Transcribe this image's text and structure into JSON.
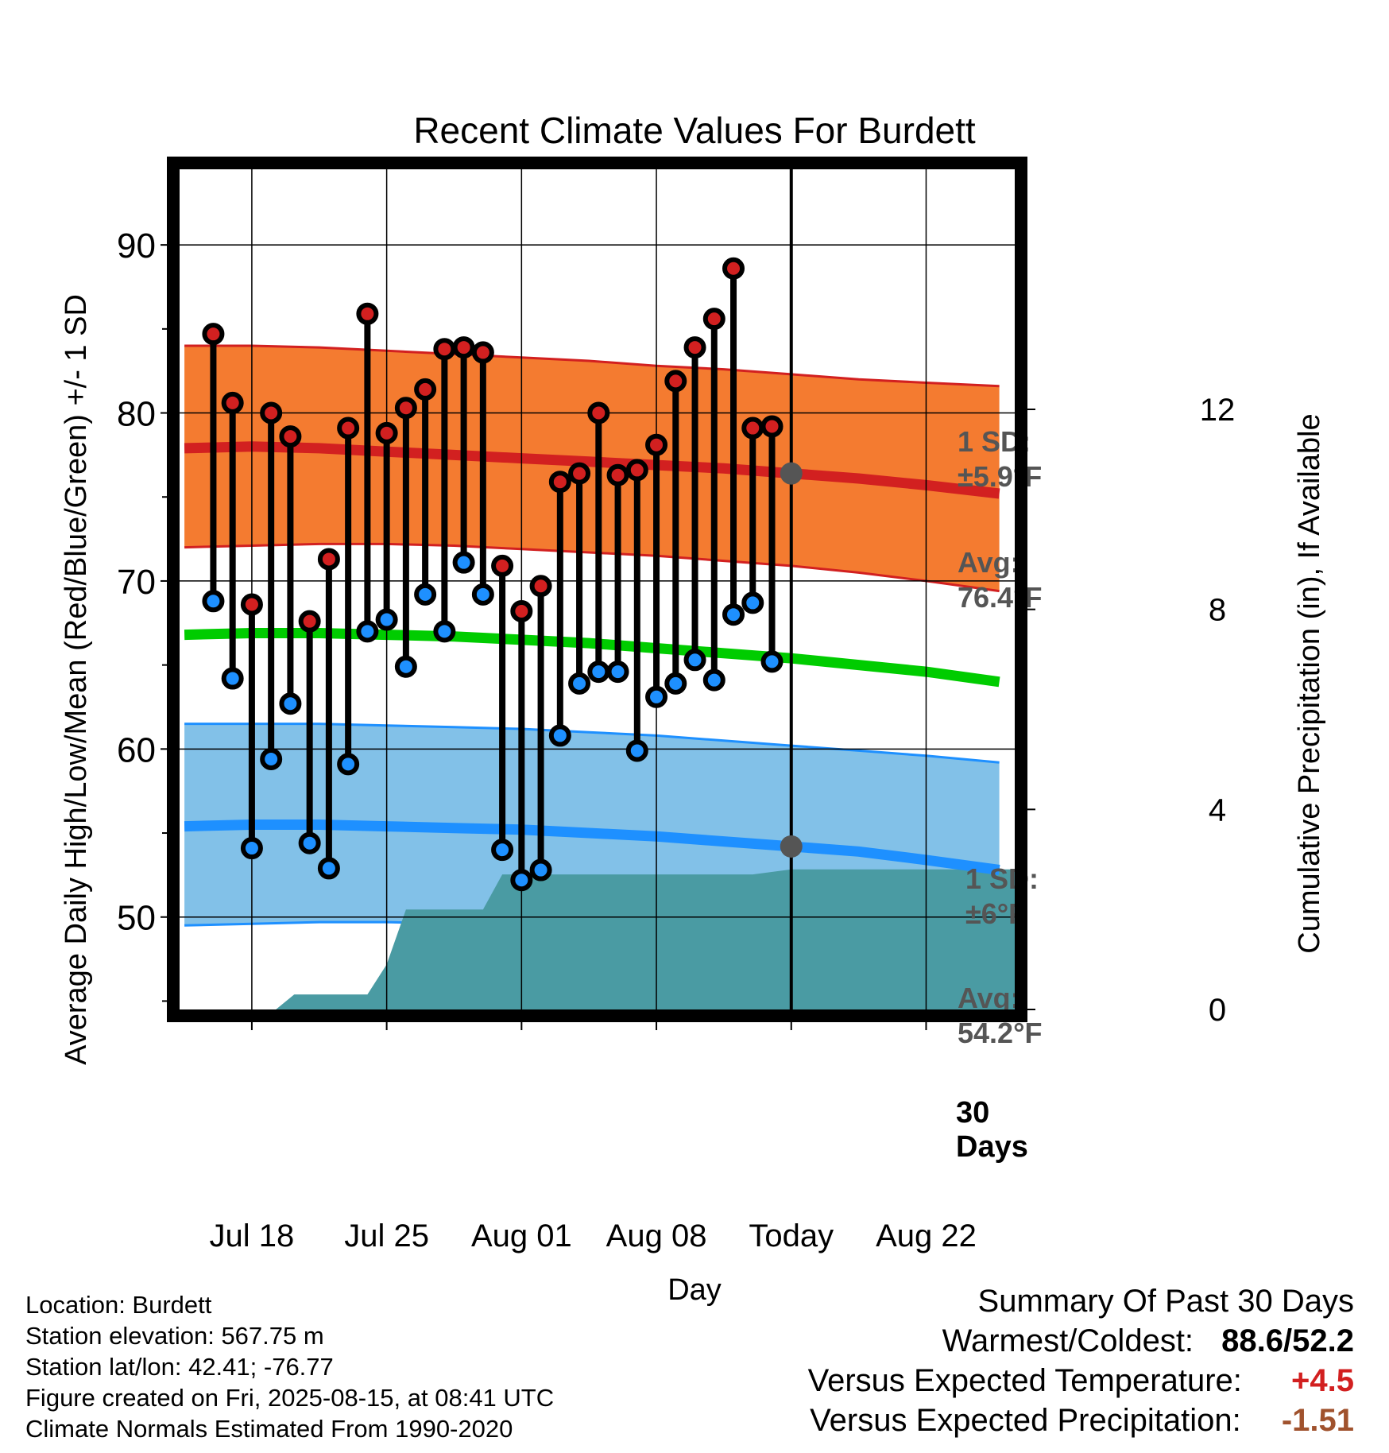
{
  "chart_data": {
    "type": "line",
    "title": "Recent Climate Values For Burdett",
    "xlabel": "Day",
    "ylabel": "Average Daily High/Low/Mean (Red/Blue/Green) +/- 1 SD",
    "y2label": "Cumulative Precipitation (in), If Available",
    "ylim": [
      44.5,
      94.5
    ],
    "y2lim": [
      0,
      16.8
    ],
    "xlim": [
      -3.75,
      39.6
    ],
    "y_ticks": [
      90,
      80,
      70,
      60,
      50
    ],
    "y2_ticks": [
      12,
      8,
      4,
      0
    ],
    "x_ticks": [
      {
        "label": "Jul 18",
        "day": 0
      },
      {
        "label": "Jul 25",
        "day": 7
      },
      {
        "label": "Aug 01",
        "day": 14
      },
      {
        "label": "Aug 08",
        "day": 21
      },
      {
        "label": "Today",
        "day": 28
      },
      {
        "label": "Aug 22",
        "day": 35
      }
    ],
    "today_day": 28,
    "days": [
      -2,
      -1,
      0,
      1,
      2,
      3,
      4,
      5,
      6,
      7,
      8,
      9,
      10,
      11,
      12,
      13,
      14,
      15,
      16,
      17,
      18,
      19,
      20,
      21,
      22,
      23,
      24,
      25,
      26,
      27
    ],
    "series": [
      {
        "name": "High",
        "color": "#d22020",
        "values": [
          84.7,
          80.6,
          68.6,
          80.0,
          78.6,
          67.6,
          71.3,
          79.1,
          85.9,
          78.8,
          80.3,
          81.4,
          83.8,
          83.9,
          83.6,
          70.9,
          68.2,
          69.7,
          75.9,
          76.4,
          80.0,
          76.3,
          76.6,
          78.1,
          81.9,
          83.9,
          85.6,
          88.6,
          79.1,
          79.2
        ]
      },
      {
        "name": "Low",
        "color": "#1e90ff",
        "values": [
          68.8,
          64.2,
          54.1,
          59.4,
          62.7,
          54.4,
          52.9,
          59.1,
          67.0,
          67.7,
          64.9,
          69.2,
          67.0,
          71.1,
          69.2,
          54.0,
          52.2,
          52.8,
          60.8,
          63.9,
          64.6,
          64.6,
          59.9,
          63.1,
          63.9,
          65.3,
          64.1,
          68.0,
          68.7,
          65.2
        ]
      }
    ],
    "normals": {
      "days": [
        -3.5,
        0,
        3.5,
        7,
        10.5,
        14,
        17.5,
        21,
        24.5,
        28,
        31.5,
        35,
        38.8
      ],
      "avg_high": [
        77.9,
        78.0,
        77.9,
        77.7,
        77.5,
        77.3,
        77.1,
        76.9,
        76.7,
        76.4,
        76.1,
        75.7,
        75.2
      ],
      "high_sd_upper": [
        84.0,
        84.0,
        83.9,
        83.7,
        83.5,
        83.3,
        83.1,
        82.8,
        82.6,
        82.3,
        82.0,
        81.8,
        81.6
      ],
      "high_sd_lower": [
        72.0,
        72.1,
        72.2,
        72.2,
        72.1,
        71.9,
        71.7,
        71.5,
        71.2,
        70.9,
        70.5,
        70.0,
        69.4
      ],
      "avg_mean": [
        66.8,
        66.9,
        66.9,
        66.8,
        66.7,
        66.5,
        66.3,
        66.0,
        65.7,
        65.4,
        65.0,
        64.6,
        64.0
      ],
      "avg_low": [
        55.4,
        55.5,
        55.5,
        55.4,
        55.3,
        55.2,
        55.0,
        54.8,
        54.5,
        54.2,
        53.9,
        53.4,
        52.8
      ],
      "low_sd_upper": [
        61.5,
        61.5,
        61.5,
        61.4,
        61.3,
        61.2,
        61.0,
        60.8,
        60.5,
        60.2,
        59.9,
        59.6,
        59.2
      ],
      "low_sd_lower": [
        49.5,
        49.6,
        49.7,
        49.7,
        49.6,
        49.6,
        49.5,
        49.5,
        49.5,
        49.5,
        49.5,
        49.5,
        49.5
      ],
      "colors": {
        "high_band": "#f47b30",
        "high_line": "#d22020",
        "mean_line": "#00cc00",
        "low_band": "#82c1e8",
        "low_line": "#1e90ff"
      }
    },
    "precipitation": {
      "color": "#4a9ba3",
      "days": [
        -3.75,
        1.25,
        2.2,
        6.0,
        7.0,
        8.0,
        10.0,
        12.0,
        13.0,
        26.0,
        28.0,
        39.6
      ],
      "values": [
        0.0,
        0.0,
        0.3,
        0.3,
        0.9,
        2.0,
        2.0,
        2.0,
        2.7,
        2.7,
        2.8,
        2.8
      ]
    },
    "annotations": {
      "high_sd": {
        "line1": "1 SD:",
        "line2": "±5.9°F"
      },
      "high_avg": {
        "line1": "Avg:",
        "line2": "76.4°F",
        "value": 76.4
      },
      "low_sd": {
        "line1": "1 SD:",
        "line2": "±6°F"
      },
      "low_avg": {
        "line1": "Avg:",
        "line2": "54.2°F",
        "value": 54.2
      },
      "period": {
        "line1": "30",
        "line2": "Days"
      }
    }
  },
  "footer": {
    "location": "Location: Burdett",
    "elevation": "Station elevation: 567.75 m",
    "latlon": "Station lat/lon: 42.41; -76.77",
    "created": "Figure created on Fri, 2025-08-15, at 08:41 UTC",
    "normals": "Climate Normals Estimated From 1990-2020"
  },
  "summary": {
    "title": "Summary Of Past 30 Days",
    "warmest_label": "Warmest/Coldest:",
    "warmest_value": "88.6/52.2",
    "temp_label": "Versus Expected Temperature:",
    "temp_value": "+4.5",
    "temp_color": "#d22020",
    "precip_label": "Versus Expected Precipitation:",
    "precip_value": "-1.51",
    "precip_color": "#a0522d"
  }
}
